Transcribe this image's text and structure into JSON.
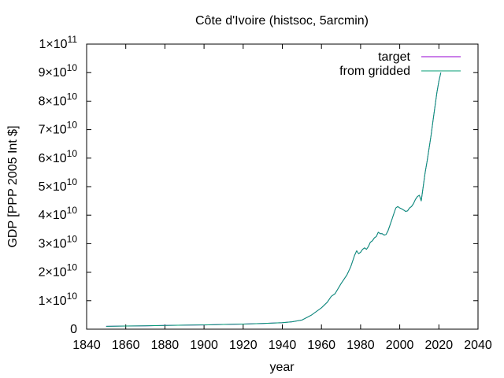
{
  "chart_data": {
    "type": "line",
    "title": "Côte d'Ivoire (histsoc, 5arcmin)",
    "xlabel": "year",
    "ylabel": "GDP [PPP 2005 Int $]",
    "xlim": [
      1840,
      2040
    ],
    "ylim": [
      0,
      100000000000
    ],
    "grid": false,
    "legend_position": "top-right",
    "x_ticks": [
      1840,
      1860,
      1880,
      1900,
      1920,
      1940,
      1960,
      1980,
      2000,
      2020,
      2040
    ],
    "y_ticks": [
      {
        "value": 0,
        "mant": "0",
        "exp": ""
      },
      {
        "value": 10000000000,
        "mant": "1×10",
        "exp": "10"
      },
      {
        "value": 20000000000,
        "mant": "2×10",
        "exp": "10"
      },
      {
        "value": 30000000000,
        "mant": "3×10",
        "exp": "10"
      },
      {
        "value": 40000000000,
        "mant": "4×10",
        "exp": "10"
      },
      {
        "value": 50000000000,
        "mant": "5×10",
        "exp": "10"
      },
      {
        "value": 60000000000,
        "mant": "6×10",
        "exp": "10"
      },
      {
        "value": 70000000000,
        "mant": "7×10",
        "exp": "10"
      },
      {
        "value": 80000000000,
        "mant": "8×10",
        "exp": "10"
      },
      {
        "value": 90000000000,
        "mant": "9×10",
        "exp": "10"
      },
      {
        "value": 100000000000,
        "mant": "1×10",
        "exp": "11"
      }
    ],
    "x": [
      1850,
      1860,
      1870,
      1880,
      1890,
      1900,
      1910,
      1920,
      1930,
      1940,
      1945,
      1950,
      1955,
      1960,
      1963,
      1965,
      1967,
      1970,
      1973,
      1975,
      1977,
      1978,
      1979,
      1980,
      1981,
      1982,
      1983,
      1984,
      1985,
      1986,
      1987,
      1988,
      1989,
      1990,
      1991,
      1992,
      1993,
      1994,
      1995,
      1996,
      1997,
      1998,
      1999,
      2000,
      2001,
      2002,
      2003,
      2004,
      2005,
      2006,
      2007,
      2008,
      2009,
      2010,
      2011,
      2012,
      2013,
      2014,
      2015,
      2016,
      2017,
      2018,
      2019,
      2020,
      2021
    ],
    "series": [
      {
        "name": "target",
        "color": "#9400d3",
        "values": [
          1000000000,
          1100000000,
          1200000000,
          1300000000,
          1400000000,
          1500000000,
          1650000000,
          1800000000,
          2000000000,
          2300000000,
          2600000000,
          3200000000,
          5000000000,
          7500000000,
          9500000000,
          11500000000,
          12500000000,
          16000000000,
          19000000000,
          22000000000,
          26000000000,
          27500000000,
          26500000000,
          27000000000,
          28000000000,
          28500000000,
          28000000000,
          29000000000,
          30500000000,
          31000000000,
          32000000000,
          32500000000,
          34000000000,
          33500000000,
          33500000000,
          33000000000,
          33200000000,
          34500000000,
          36500000000,
          38500000000,
          40500000000,
          42500000000,
          43000000000,
          42500000000,
          42200000000,
          41800000000,
          41300000000,
          41500000000,
          42500000000,
          43000000000,
          44000000000,
          45500000000,
          46500000000,
          47000000000,
          45000000000,
          50000000000,
          55000000000,
          59000000000,
          63500000000,
          68000000000,
          73000000000,
          78000000000,
          83000000000,
          87000000000,
          90000000000
        ]
      },
      {
        "name": "from gridded",
        "color": "#009e73",
        "values": [
          1000000000,
          1100000000,
          1200000000,
          1300000000,
          1400000000,
          1500000000,
          1650000000,
          1800000000,
          2000000000,
          2300000000,
          2600000000,
          3200000000,
          5000000000,
          7500000000,
          9500000000,
          11500000000,
          12500000000,
          16000000000,
          19000000000,
          22000000000,
          26000000000,
          27500000000,
          26500000000,
          27000000000,
          28000000000,
          28500000000,
          28000000000,
          29000000000,
          30500000000,
          31000000000,
          32000000000,
          32500000000,
          34000000000,
          33500000000,
          33500000000,
          33000000000,
          33200000000,
          34500000000,
          36500000000,
          38500000000,
          40500000000,
          42500000000,
          43000000000,
          42500000000,
          42200000000,
          41800000000,
          41300000000,
          41500000000,
          42500000000,
          43000000000,
          44000000000,
          45500000000,
          46500000000,
          47000000000,
          45000000000,
          50000000000,
          55000000000,
          59000000000,
          63500000000,
          68000000000,
          73000000000,
          78000000000,
          83000000000,
          87000000000,
          90000000000
        ]
      }
    ]
  }
}
